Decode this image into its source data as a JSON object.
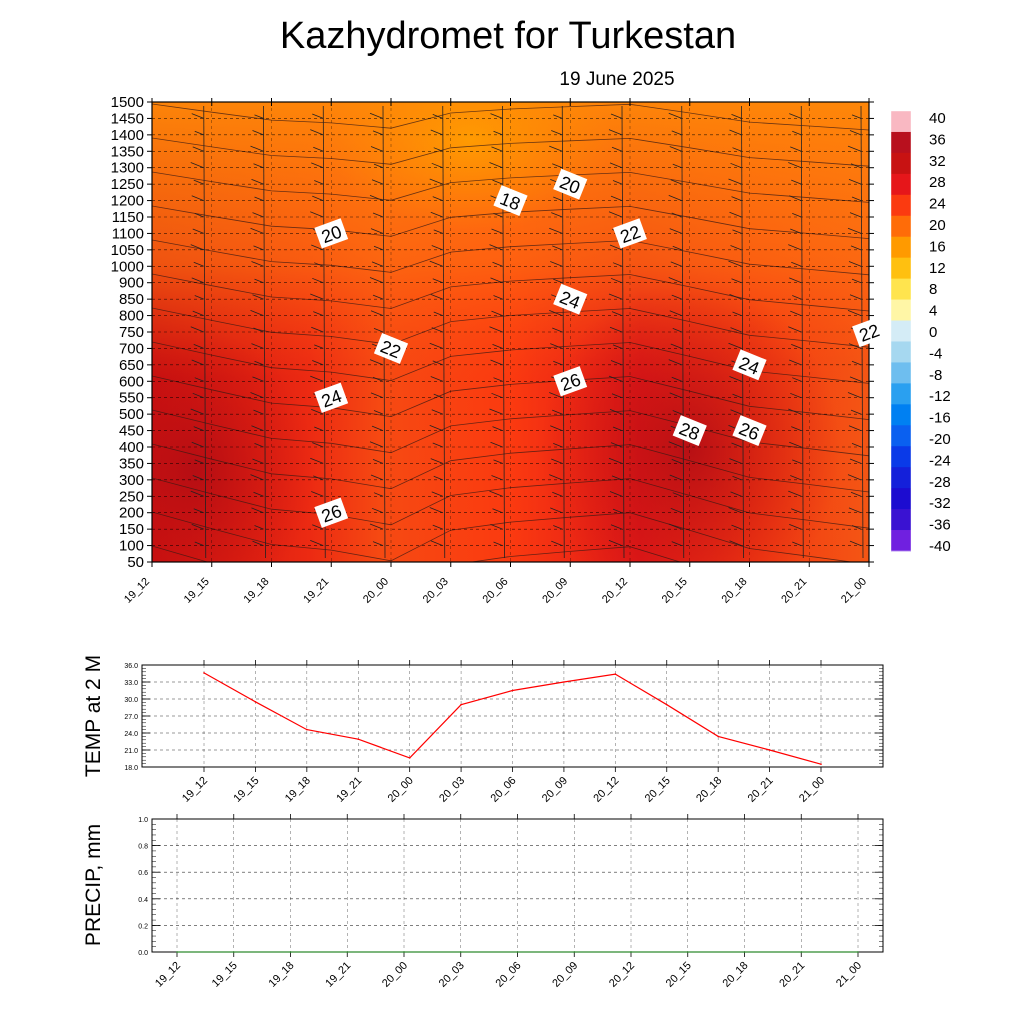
{
  "header": {
    "title": "Kazhydromet  for Turkestan",
    "date": "19 June 2025"
  },
  "chart_data": [
    {
      "type": "heatmap",
      "x_ticks": [
        "19_12",
        "19_15",
        "19_18",
        "19_21",
        "20_00",
        "20_03",
        "20_06",
        "20_09",
        "20_12",
        "20_15",
        "20_18",
        "20_21",
        "21_00"
      ],
      "y_ticks": [
        "50",
        "100",
        "150",
        "200",
        "250",
        "300",
        "350",
        "400",
        "450",
        "500",
        "550",
        "600",
        "650",
        "700",
        "750",
        "800",
        "850",
        "900",
        "1000",
        "1050",
        "1100",
        "1150",
        "1200",
        "1250",
        "1300",
        "1350",
        "1400",
        "1450",
        "1500"
      ],
      "colorbar": {
        "labels": [
          "40",
          "36",
          "32",
          "28",
          "24",
          "20",
          "16",
          "12",
          "8",
          "4",
          "0",
          "-4",
          "-8",
          "-12",
          "-16",
          "-20",
          "-24",
          "-28",
          "-32",
          "-36",
          "-40"
        ],
        "colors": [
          "#f9b8c2",
          "#b8101e",
          "#c81212",
          "#e6161a",
          "#fb3a10",
          "#ff6c08",
          "#ff9a00",
          "#ffc010",
          "#ffe44e",
          "#fff6a6",
          "#d4ecf6",
          "#a6d8f0",
          "#6ebeef",
          "#2aa0f0",
          "#0080f2",
          "#0a60f0",
          "#0a3ae8",
          "#1420da",
          "#1c0cd0",
          "#3a12d2",
          "#7020e0"
        ]
      },
      "contour_labels": [
        {
          "text": "18",
          "t": "20_06",
          "level": "1200"
        },
        {
          "text": "20",
          "t": "19_21",
          "level": "1100"
        },
        {
          "text": "20",
          "t": "20_09",
          "level": "1250"
        },
        {
          "text": "22",
          "t": "20_12",
          "level": "1100"
        },
        {
          "text": "22",
          "t": "20_00",
          "level": "700"
        },
        {
          "text": "22",
          "t": "21_00",
          "level": "750"
        },
        {
          "text": "24",
          "t": "20_09",
          "level": "850"
        },
        {
          "text": "24",
          "t": "19_21",
          "level": "550"
        },
        {
          "text": "24",
          "t": "20_18",
          "level": "650"
        },
        {
          "text": "26",
          "t": "20_09",
          "level": "600"
        },
        {
          "text": "26",
          "t": "20_18",
          "level": "450"
        },
        {
          "text": "26",
          "t": "19_21",
          "level": "200"
        },
        {
          "text": "28",
          "t": "20_15",
          "level": "450"
        }
      ]
    },
    {
      "type": "line",
      "ylabel": "TEMP at 2 M",
      "x": [
        "19_12",
        "19_15",
        "19_18",
        "19_21",
        "20_00",
        "20_03",
        "20_06",
        "20_09",
        "20_12",
        "20_15",
        "20_18",
        "20_21",
        "21_00"
      ],
      "ylim": [
        18,
        36
      ],
      "y_ticks": [
        "18.0",
        "21.0",
        "24.0",
        "27.0",
        "30.0",
        "33.0",
        "36.0"
      ],
      "series": [
        {
          "values": [
            34.6,
            29.5,
            24.6,
            22.9,
            19.6,
            29.0,
            31.5,
            33.0,
            34.4,
            29.0,
            23.4,
            21.0,
            18.5
          ],
          "color": "#ff0000"
        }
      ]
    },
    {
      "type": "line",
      "ylabel": "PRECIP, mm",
      "x": [
        "19_12",
        "19_15",
        "19_18",
        "19_21",
        "20_00",
        "20_03",
        "20_06",
        "20_09",
        "20_12",
        "20_15",
        "20_18",
        "20_21",
        "21_00"
      ],
      "ylim": [
        0,
        1
      ],
      "y_ticks": [
        "0.0",
        "0.2",
        "0.4",
        "0.6",
        "0.8",
        "1.0"
      ],
      "series": [
        {
          "values": [
            0,
            0,
            0,
            0,
            0,
            0,
            0,
            0,
            0,
            0,
            0,
            0,
            0
          ],
          "color": "#2e8b2e"
        }
      ]
    }
  ]
}
